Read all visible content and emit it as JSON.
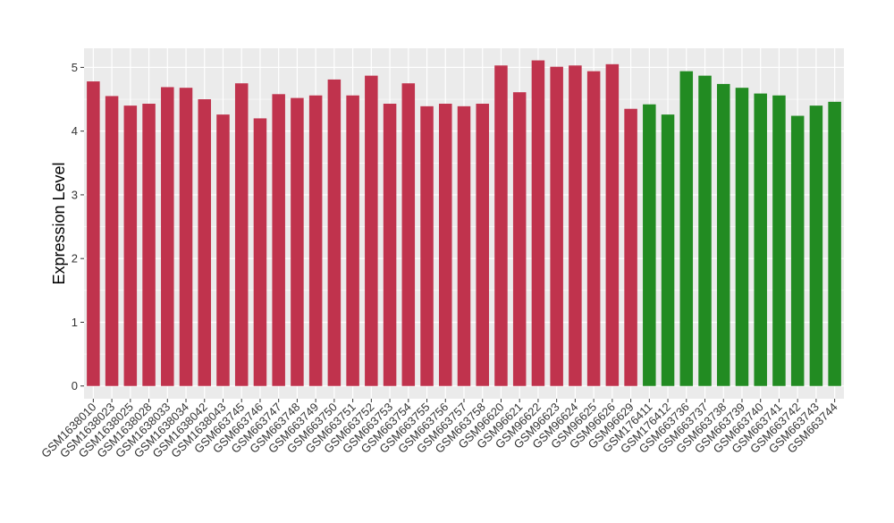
{
  "chart_data": {
    "type": "bar",
    "ylabel": "Expression Level",
    "ylim": [
      -0.2,
      5.3
    ],
    "yticks": [
      0,
      1,
      2,
      3,
      4,
      5
    ],
    "grid": true,
    "legend": "none",
    "colors": {
      "group1": "#c0334d",
      "group2": "#228b22",
      "panel": "#ebebeb",
      "grid": "#ffffff"
    },
    "categories": [
      "GSM1638010",
      "GSM1638023",
      "GSM1638025",
      "GSM1638028",
      "GSM1638033",
      "GSM1638034",
      "GSM1638042",
      "GSM1638043",
      "GSM663745",
      "GSM663746",
      "GSM663747",
      "GSM663748",
      "GSM663749",
      "GSM663750",
      "GSM663751",
      "GSM663752",
      "GSM663753",
      "GSM663754",
      "GSM663755",
      "GSM663756",
      "GSM663757",
      "GSM663758",
      "GSM96620",
      "GSM96621",
      "GSM96622",
      "GSM96623",
      "GSM96624",
      "GSM96625",
      "GSM96626",
      "GSM96629",
      "GSM176411",
      "GSM176412",
      "GSM663736",
      "GSM663737",
      "GSM663738",
      "GSM663739",
      "GSM663740",
      "GSM663741",
      "GSM663742",
      "GSM663743",
      "GSM663744"
    ],
    "values": [
      4.78,
      4.55,
      4.4,
      4.43,
      4.69,
      4.68,
      4.5,
      4.26,
      4.75,
      4.2,
      4.58,
      4.52,
      4.56,
      4.81,
      4.56,
      4.87,
      4.43,
      4.75,
      4.39,
      4.43,
      4.39,
      4.43,
      5.03,
      4.61,
      5.11,
      5.01,
      5.03,
      4.94,
      5.05,
      4.35,
      4.42,
      4.26,
      4.94,
      4.87,
      4.74,
      4.68,
      4.59,
      4.56,
      4.24,
      4.4,
      4.46
    ],
    "group": [
      1,
      1,
      1,
      1,
      1,
      1,
      1,
      1,
      1,
      1,
      1,
      1,
      1,
      1,
      1,
      1,
      1,
      1,
      1,
      1,
      1,
      1,
      1,
      1,
      1,
      1,
      1,
      1,
      1,
      1,
      2,
      2,
      2,
      2,
      2,
      2,
      2,
      2,
      2,
      2,
      2
    ]
  }
}
